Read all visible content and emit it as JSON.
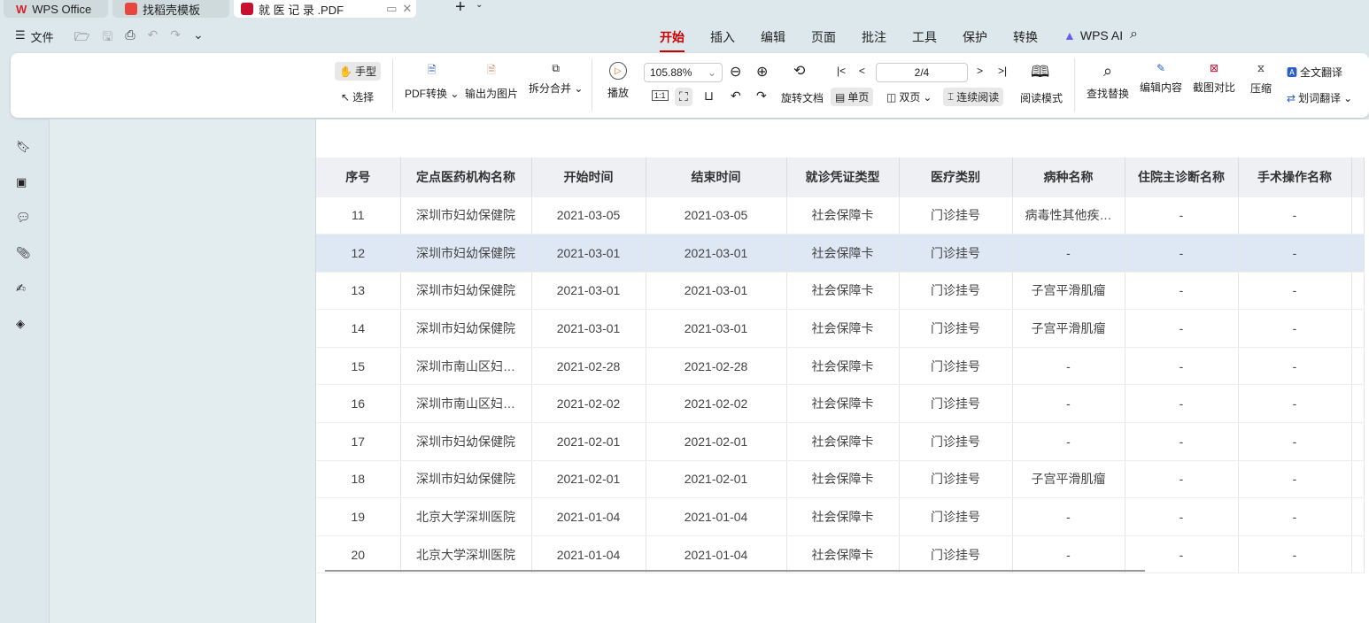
{
  "tabs": [
    {
      "label": "WPS Office"
    },
    {
      "label": "找稻壳模板"
    },
    {
      "label": "就 医 记 录 .PDF"
    }
  ],
  "quick": {
    "file": "文件"
  },
  "menu": [
    "开始",
    "插入",
    "编辑",
    "页面",
    "批注",
    "工具",
    "保护",
    "转换",
    "WPS AI"
  ],
  "ribbon": {
    "hand": "手型",
    "select": "选择",
    "pdf_convert": "PDF转换",
    "export_image": "输出为图片",
    "split_merge": "拆分合并",
    "play": "播放",
    "zoom": "105.88%",
    "page": "2/4",
    "rotate": "旋转文档",
    "single": "单页",
    "double": "双页",
    "continuous": "连续阅读",
    "reading": "阅读模式",
    "find": "查找替换",
    "edit": "编辑内容",
    "compare": "截图对比",
    "compress": "压缩",
    "full_translate": "全文翻译",
    "word_translate": "划词翻译",
    "actual_size": "1:1"
  },
  "table": {
    "headers": [
      "序号",
      "定点医药机构名称",
      "开始时间",
      "结束时间",
      "就诊凭证类型",
      "医疗类别",
      "病种名称",
      "住院主诊断名称",
      "手术操作名称"
    ],
    "rows": [
      [
        "11",
        "深圳市妇幼保健院",
        "2021-03-05",
        "2021-03-05",
        "社会保障卡",
        "门诊挂号",
        "病毒性其他疾…",
        "-",
        "-"
      ],
      [
        "12",
        "深圳市妇幼保健院",
        "2021-03-01",
        "2021-03-01",
        "社会保障卡",
        "门诊挂号",
        "-",
        "-",
        "-"
      ],
      [
        "13",
        "深圳市妇幼保健院",
        "2021-03-01",
        "2021-03-01",
        "社会保障卡",
        "门诊挂号",
        "子宫平滑肌瘤",
        "-",
        "-"
      ],
      [
        "14",
        "深圳市妇幼保健院",
        "2021-03-01",
        "2021-03-01",
        "社会保障卡",
        "门诊挂号",
        "子宫平滑肌瘤",
        "-",
        "-"
      ],
      [
        "15",
        "深圳市南山区妇…",
        "2021-02-28",
        "2021-02-28",
        "社会保障卡",
        "门诊挂号",
        "-",
        "-",
        "-"
      ],
      [
        "16",
        "深圳市南山区妇…",
        "2021-02-02",
        "2021-02-02",
        "社会保障卡",
        "门诊挂号",
        "-",
        "-",
        "-"
      ],
      [
        "17",
        "深圳市妇幼保健院",
        "2021-02-01",
        "2021-02-01",
        "社会保障卡",
        "门诊挂号",
        "-",
        "-",
        "-"
      ],
      [
        "18",
        "深圳市妇幼保健院",
        "2021-02-01",
        "2021-02-01",
        "社会保障卡",
        "门诊挂号",
        "子宫平滑肌瘤",
        "-",
        "-"
      ],
      [
        "19",
        "北京大学深圳医院",
        "2021-01-04",
        "2021-01-04",
        "社会保障卡",
        "门诊挂号",
        "-",
        "-",
        "-"
      ],
      [
        "20",
        "北京大学深圳医院",
        "2021-01-04",
        "2021-01-04",
        "社会保障卡",
        "门诊挂号",
        "-",
        "-",
        "-"
      ]
    ],
    "highlighted_row": "12"
  },
  "colors": {
    "accent": "#c8102e",
    "highlight_row": "#dde8f4"
  }
}
